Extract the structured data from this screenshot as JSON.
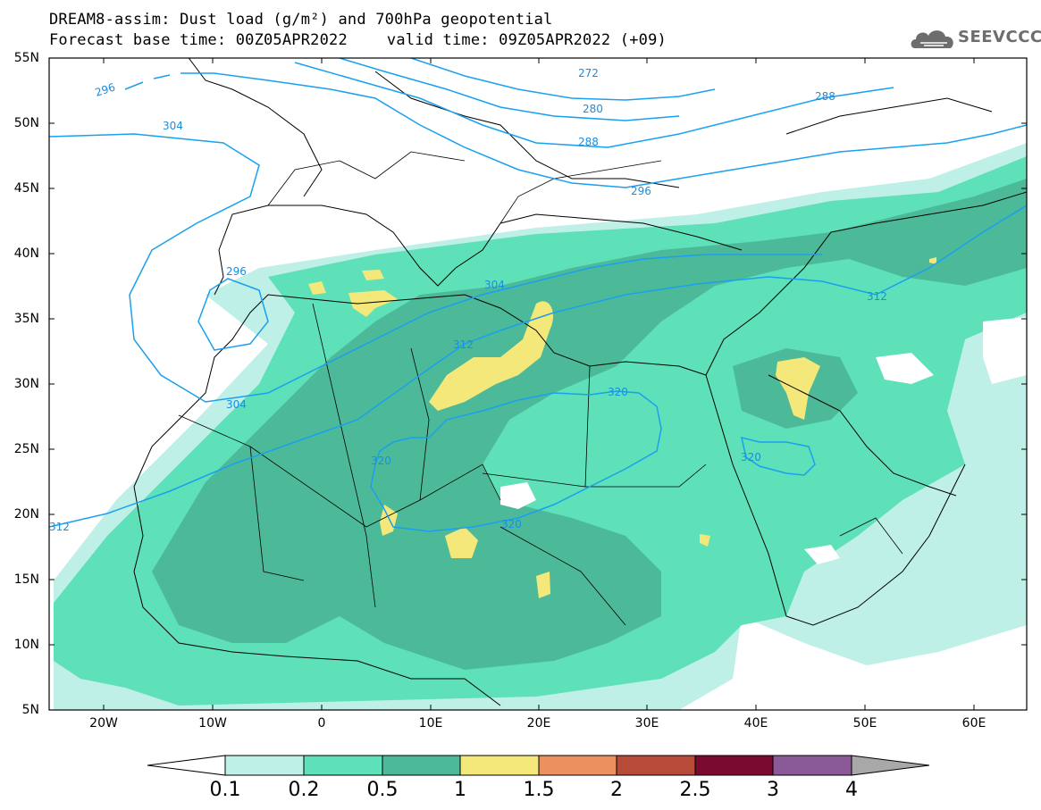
{
  "header": {
    "title": "DREAM8-assim: Dust load (g/m²) and 700hPa geopotential",
    "base_time": "Forecast base time: 00Z05APR2022",
    "valid_time": "valid time: 09Z05APR2022 (+09)"
  },
  "logo": {
    "text": "SEEVCCC",
    "icon": "cloud-icon"
  },
  "map": {
    "lat_labels": [
      "55N",
      "50N",
      "45N",
      "40N",
      "35N",
      "30N",
      "25N",
      "20N",
      "15N",
      "10N",
      "5N"
    ],
    "lon_labels": [
      "20W",
      "10W",
      "0",
      "10E",
      "20E",
      "30E",
      "40E",
      "50E",
      "60E"
    ],
    "contour_labels": [
      "296",
      "272",
      "280",
      "288",
      "288",
      "296",
      "304",
      "304",
      "312",
      "312",
      "320",
      "320",
      "320",
      "320",
      "296",
      "312",
      "304"
    ],
    "contour_color": "#19a0f0",
    "land_border_color": "#000000"
  },
  "colorbar": {
    "labels": [
      "0.1",
      "0.2",
      "0.5",
      "1",
      "1.5",
      "2",
      "2.5",
      "3",
      "4"
    ],
    "colors": [
      "#ffffff",
      "#bff0e8",
      "#5ee0b8",
      "#4cba98",
      "#f4e87a",
      "#ec9060",
      "#b84a3a",
      "#7a0a30",
      "#8a5a98",
      "#a8a8a8"
    ]
  }
}
